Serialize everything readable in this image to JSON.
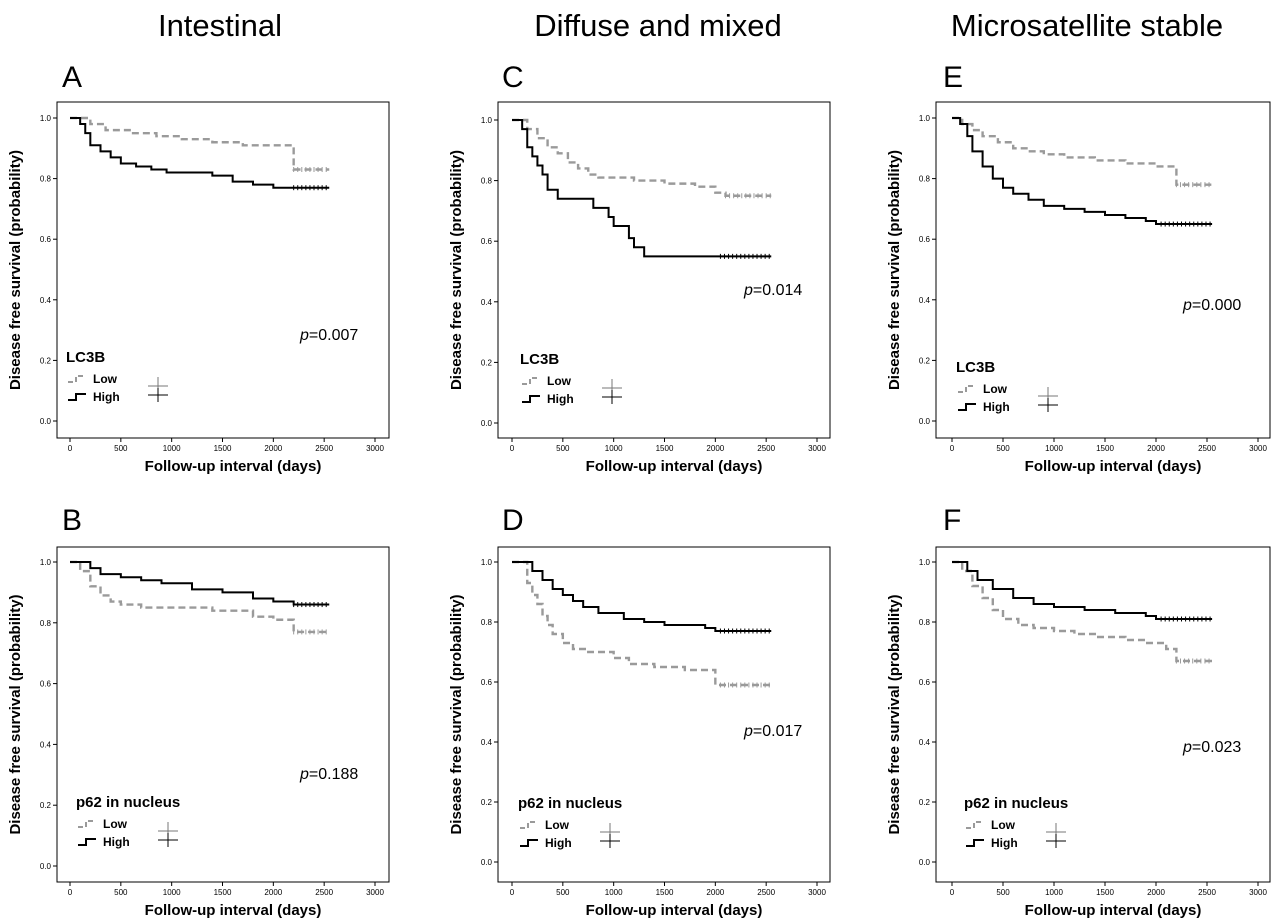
{
  "column_titles": [
    "Intestinal",
    "Diffuse and mixed",
    "Microsatellite stable"
  ],
  "chart_data": [
    {
      "type": "line",
      "panel": "A",
      "xlabel": "Follow-up interval (days)",
      "ylabel": "Disease free survival (probability)",
      "xlim": [
        0,
        3000
      ],
      "ylim": [
        0,
        1.0
      ],
      "xticks": [
        "0",
        "500",
        "1000",
        "1500",
        "2000",
        "2500",
        "3000"
      ],
      "yticks": [
        "0.0",
        "0.2",
        "0.4",
        "0.6",
        "0.8",
        "1.0"
      ],
      "legend_title": "LC3B",
      "legend_placement": "bottom-left",
      "pvalue_prefix": "p",
      "pvalue_text": "=0.007",
      "series": [
        {
          "name": "Low",
          "color": "#9a9a9a",
          "dash": true,
          "points": [
            [
              0,
              1.0
            ],
            [
              200,
              0.98
            ],
            [
              350,
              0.96
            ],
            [
              600,
              0.95
            ],
            [
              850,
              0.94
            ],
            [
              1100,
              0.93
            ],
            [
              1400,
              0.92
            ],
            [
              1700,
              0.91
            ],
            [
              2200,
              0.91
            ],
            [
              2200,
              0.83
            ],
            [
              2550,
              0.83
            ]
          ]
        },
        {
          "name": "High",
          "color": "#000000",
          "dash": false,
          "points": [
            [
              0,
              1.0
            ],
            [
              100,
              0.98
            ],
            [
              150,
              0.95
            ],
            [
              200,
              0.91
            ],
            [
              300,
              0.89
            ],
            [
              400,
              0.87
            ],
            [
              500,
              0.85
            ],
            [
              650,
              0.84
            ],
            [
              800,
              0.83
            ],
            [
              950,
              0.82
            ],
            [
              1200,
              0.82
            ],
            [
              1400,
              0.81
            ],
            [
              1600,
              0.79
            ],
            [
              1800,
              0.78
            ],
            [
              2000,
              0.77
            ],
            [
              2200,
              0.77
            ],
            [
              2550,
              0.77
            ]
          ]
        }
      ]
    },
    {
      "type": "line",
      "panel": "B",
      "xlabel": "Follow-up interval (days)",
      "ylabel": "Disease free survival (probability)",
      "xlim": [
        0,
        3000
      ],
      "ylim": [
        0,
        1.0
      ],
      "xticks": [
        "0",
        "500",
        "1000",
        "1500",
        "2000",
        "2500",
        "3000"
      ],
      "yticks": [
        "0.0",
        "0.2",
        "0.4",
        "0.6",
        "0.8",
        "1.0"
      ],
      "legend_title": "p62 in nucleus",
      "legend_placement": "bottom-left",
      "pvalue_prefix": "p",
      "pvalue_text": "=0.188",
      "series": [
        {
          "name": "Low",
          "color": "#9a9a9a",
          "dash": true,
          "points": [
            [
              0,
              1.0
            ],
            [
              100,
              0.97
            ],
            [
              200,
              0.92
            ],
            [
              300,
              0.89
            ],
            [
              400,
              0.87
            ],
            [
              500,
              0.86
            ],
            [
              700,
              0.85
            ],
            [
              1000,
              0.85
            ],
            [
              1400,
              0.84
            ],
            [
              1800,
              0.82
            ],
            [
              2000,
              0.81
            ],
            [
              2200,
              0.81
            ],
            [
              2200,
              0.77
            ],
            [
              2550,
              0.77
            ]
          ]
        },
        {
          "name": "High",
          "color": "#000000",
          "dash": false,
          "points": [
            [
              0,
              1.0
            ],
            [
              200,
              0.98
            ],
            [
              300,
              0.96
            ],
            [
              500,
              0.95
            ],
            [
              700,
              0.94
            ],
            [
              900,
              0.93
            ],
            [
              1200,
              0.91
            ],
            [
              1500,
              0.9
            ],
            [
              1800,
              0.88
            ],
            [
              2000,
              0.87
            ],
            [
              2200,
              0.86
            ],
            [
              2550,
              0.86
            ]
          ]
        }
      ]
    },
    {
      "type": "line",
      "panel": "C",
      "xlabel": "Follow-up interval (days)",
      "ylabel": "Disease free survival (probability)",
      "xlim": [
        0,
        3000
      ],
      "ylim": [
        0,
        1.0
      ],
      "xticks": [
        "0",
        "500",
        "1000",
        "1500",
        "2000",
        "2500",
        "3000"
      ],
      "yticks": [
        "0.0",
        "0.2",
        "0.4",
        "0.6",
        "0.8",
        "1.0"
      ],
      "legend_title": "LC3B",
      "legend_placement": "bottom-left",
      "pvalue_prefix": "p",
      "pvalue_text": "=0.014",
      "series": [
        {
          "name": "Low",
          "color": "#9a9a9a",
          "dash": true,
          "points": [
            [
              0,
              1.0
            ],
            [
              150,
              0.97
            ],
            [
              250,
              0.94
            ],
            [
              350,
              0.91
            ],
            [
              450,
              0.89
            ],
            [
              550,
              0.86
            ],
            [
              650,
              0.84
            ],
            [
              750,
              0.82
            ],
            [
              850,
              0.81
            ],
            [
              1100,
              0.81
            ],
            [
              1200,
              0.8
            ],
            [
              1500,
              0.79
            ],
            [
              1800,
              0.78
            ],
            [
              2000,
              0.76
            ],
            [
              2100,
              0.75
            ],
            [
              2550,
              0.75
            ]
          ]
        },
        {
          "name": "High",
          "color": "#000000",
          "dash": false,
          "points": [
            [
              0,
              1.0
            ],
            [
              100,
              0.97
            ],
            [
              150,
              0.91
            ],
            [
              200,
              0.88
            ],
            [
              250,
              0.85
            ],
            [
              300,
              0.82
            ],
            [
              350,
              0.77
            ],
            [
              450,
              0.74
            ],
            [
              800,
              0.71
            ],
            [
              950,
              0.68
            ],
            [
              1000,
              0.65
            ],
            [
              1150,
              0.61
            ],
            [
              1200,
              0.58
            ],
            [
              1300,
              0.55
            ],
            [
              2550,
              0.55
            ]
          ]
        }
      ]
    },
    {
      "type": "line",
      "panel": "D",
      "xlabel": "Follow-up interval (days)",
      "ylabel": "Disease free survival (probability)",
      "xlim": [
        0,
        3000
      ],
      "ylim": [
        0,
        1.0
      ],
      "xticks": [
        "0",
        "500",
        "1000",
        "1500",
        "2000",
        "2500",
        "3000"
      ],
      "yticks": [
        "0.0",
        "0.2",
        "0.4",
        "0.6",
        "0.8",
        "1.0"
      ],
      "legend_title": "p62 in nucleus",
      "legend_placement": "bottom-left",
      "pvalue_prefix": "p",
      "pvalue_text": "=0.017",
      "series": [
        {
          "name": "Low",
          "color": "#9a9a9a",
          "dash": true,
          "points": [
            [
              0,
              1.0
            ],
            [
              150,
              0.93
            ],
            [
              200,
              0.89
            ],
            [
              250,
              0.86
            ],
            [
              300,
              0.82
            ],
            [
              350,
              0.79
            ],
            [
              400,
              0.76
            ],
            [
              500,
              0.73
            ],
            [
              600,
              0.71
            ],
            [
              750,
              0.7
            ],
            [
              1000,
              0.68
            ],
            [
              1150,
              0.66
            ],
            [
              1400,
              0.65
            ],
            [
              1700,
              0.64
            ],
            [
              2000,
              0.62
            ],
            [
              2000,
              0.59
            ],
            [
              2550,
              0.59
            ]
          ]
        },
        {
          "name": "High",
          "color": "#000000",
          "dash": false,
          "points": [
            [
              0,
              1.0
            ],
            [
              200,
              0.97
            ],
            [
              300,
              0.94
            ],
            [
              400,
              0.91
            ],
            [
              500,
              0.89
            ],
            [
              600,
              0.87
            ],
            [
              700,
              0.85
            ],
            [
              850,
              0.83
            ],
            [
              1100,
              0.81
            ],
            [
              1300,
              0.8
            ],
            [
              1500,
              0.79
            ],
            [
              1900,
              0.78
            ],
            [
              2000,
              0.77
            ],
            [
              2550,
              0.77
            ]
          ]
        }
      ]
    },
    {
      "type": "line",
      "panel": "E",
      "xlabel": "Follow-up interval (days)",
      "ylabel": "Disease free survival (probability)",
      "xlim": [
        0,
        3000
      ],
      "ylim": [
        0,
        1.0
      ],
      "xticks": [
        "0",
        "500",
        "1000",
        "1500",
        "2000",
        "2500",
        "3000"
      ],
      "yticks": [
        "0.0",
        "0.2",
        "0.4",
        "0.6",
        "0.8",
        "1.0"
      ],
      "legend_title": "LC3B",
      "legend_placement": "bottom-left",
      "pvalue_prefix": "p",
      "pvalue_text": "=0.000",
      "series": [
        {
          "name": "Low",
          "color": "#9a9a9a",
          "dash": true,
          "points": [
            [
              0,
              1.0
            ],
            [
              100,
              0.98
            ],
            [
              200,
              0.96
            ],
            [
              300,
              0.94
            ],
            [
              450,
              0.92
            ],
            [
              600,
              0.9
            ],
            [
              750,
              0.89
            ],
            [
              900,
              0.88
            ],
            [
              1100,
              0.87
            ],
            [
              1400,
              0.86
            ],
            [
              1700,
              0.85
            ],
            [
              2000,
              0.84
            ],
            [
              2200,
              0.83
            ],
            [
              2200,
              0.78
            ],
            [
              2550,
              0.78
            ]
          ]
        },
        {
          "name": "High",
          "color": "#000000",
          "dash": false,
          "points": [
            [
              0,
              1.0
            ],
            [
              80,
              0.98
            ],
            [
              150,
              0.94
            ],
            [
              200,
              0.89
            ],
            [
              300,
              0.84
            ],
            [
              400,
              0.8
            ],
            [
              500,
              0.77
            ],
            [
              600,
              0.75
            ],
            [
              750,
              0.73
            ],
            [
              900,
              0.71
            ],
            [
              1100,
              0.7
            ],
            [
              1300,
              0.69
            ],
            [
              1500,
              0.68
            ],
            [
              1700,
              0.67
            ],
            [
              1900,
              0.66
            ],
            [
              2000,
              0.65
            ],
            [
              2550,
              0.65
            ]
          ]
        }
      ]
    },
    {
      "type": "line",
      "panel": "F",
      "xlabel": "Follow-up interval (days)",
      "ylabel": "Disease free survival (probability)",
      "xlim": [
        0,
        3000
      ],
      "ylim": [
        0,
        1.0
      ],
      "xticks": [
        "0",
        "500",
        "1000",
        "1500",
        "2000",
        "2500",
        "3000"
      ],
      "yticks": [
        "0.0",
        "0.2",
        "0.4",
        "0.6",
        "0.8",
        "1.0"
      ],
      "legend_title": "p62 in nucleus",
      "legend_placement": "bottom-left",
      "pvalue_prefix": "p",
      "pvalue_text": "=0.023",
      "series": [
        {
          "name": "Low",
          "color": "#9a9a9a",
          "dash": true,
          "points": [
            [
              0,
              1.0
            ],
            [
              100,
              0.97
            ],
            [
              200,
              0.92
            ],
            [
              300,
              0.88
            ],
            [
              400,
              0.84
            ],
            [
              500,
              0.81
            ],
            [
              650,
              0.79
            ],
            [
              800,
              0.78
            ],
            [
              1000,
              0.77
            ],
            [
              1200,
              0.76
            ],
            [
              1400,
              0.75
            ],
            [
              1700,
              0.74
            ],
            [
              1900,
              0.73
            ],
            [
              2100,
              0.71
            ],
            [
              2200,
              0.7
            ],
            [
              2200,
              0.67
            ],
            [
              2550,
              0.67
            ]
          ]
        },
        {
          "name": "High",
          "color": "#000000",
          "dash": false,
          "points": [
            [
              0,
              1.0
            ],
            [
              150,
              0.97
            ],
            [
              250,
              0.94
            ],
            [
              400,
              0.91
            ],
            [
              600,
              0.88
            ],
            [
              800,
              0.86
            ],
            [
              1000,
              0.85
            ],
            [
              1300,
              0.84
            ],
            [
              1600,
              0.83
            ],
            [
              1900,
              0.82
            ],
            [
              2000,
              0.81
            ],
            [
              2550,
              0.81
            ]
          ]
        }
      ]
    }
  ]
}
